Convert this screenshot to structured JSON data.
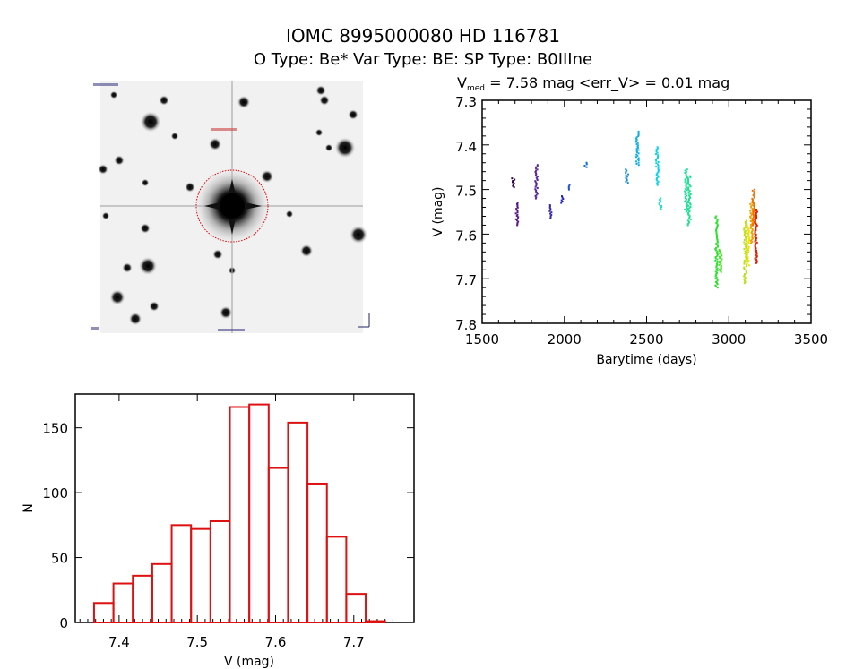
{
  "header": {
    "title": "IOMC 8995000080    HD 116781",
    "subtitle": "O Type: Be*   Var Type: BE:   SP Type: B0IIIne"
  },
  "colors": {
    "histogram": "#dd1111",
    "axes": "#000000",
    "circle": "#dd0000"
  },
  "chart_data": [
    {
      "type": "scatter",
      "title_prefix": "V",
      "title_sub": "med",
      "title_rest": " = 7.58 mag <err_V> = 0.01 mag",
      "xlabel": "Barytime (days)",
      "ylabel": "V (mag)",
      "xlim": [
        1500,
        3500
      ],
      "ylim": [
        7.3,
        7.8
      ],
      "y_inverted": true,
      "xticks": [
        "1500",
        "2000",
        "2500",
        "3000",
        "3500"
      ],
      "yticks": [
        "7.3",
        "7.4",
        "7.5",
        "7.6",
        "7.7",
        "7.8"
      ],
      "clusters": [
        {
          "t": 1690,
          "v": [
            7.475,
            7.495
          ],
          "color": "#2a0048"
        },
        {
          "t": 1712,
          "v": [
            7.53,
            7.58
          ],
          "color": "#5a1a8a"
        },
        {
          "t": 1830,
          "v": [
            7.445,
            7.52
          ],
          "color": "#5a2a9a"
        },
        {
          "t": 1915,
          "v": [
            7.535,
            7.565
          ],
          "color": "#3a2aa8"
        },
        {
          "t": 1985,
          "v": [
            7.515,
            7.53
          ],
          "color": "#2020c8"
        },
        {
          "t": 2030,
          "v": [
            7.49,
            7.5
          ],
          "color": "#2050d0"
        },
        {
          "t": 2130,
          "v": [
            7.44,
            7.45
          ],
          "color": "#1070d0"
        },
        {
          "t": 2380,
          "v": [
            7.455,
            7.485
          ],
          "color": "#1890d8"
        },
        {
          "t": 2445,
          "v": [
            7.37,
            7.445
          ],
          "color": "#10b0e0"
        },
        {
          "t": 2565,
          "v": [
            7.405,
            7.49
          ],
          "color": "#10d0e8"
        },
        {
          "t": 2582,
          "v": [
            7.52,
            7.545
          ],
          "color": "#20e0d0"
        },
        {
          "t": 2740,
          "v": [
            7.455,
            7.55
          ],
          "color": "#20e0a0"
        },
        {
          "t": 2760,
          "v": [
            7.47,
            7.58
          ],
          "color": "#20e090"
        },
        {
          "t": 2925,
          "v": [
            7.56,
            7.72
          ],
          "color": "#30e030"
        },
        {
          "t": 2950,
          "v": [
            7.635,
            7.685
          ],
          "color": "#50e030"
        },
        {
          "t": 3100,
          "v": [
            7.57,
            7.71
          ],
          "color": "#b8e020"
        },
        {
          "t": 3118,
          "v": [
            7.58,
            7.67
          ],
          "color": "#f0e000"
        },
        {
          "t": 3138,
          "v": [
            7.53,
            7.62
          ],
          "color": "#f0a000"
        },
        {
          "t": 3150,
          "v": [
            7.5,
            7.58
          ],
          "color": "#f07000"
        },
        {
          "t": 3166,
          "v": [
            7.545,
            7.665
          ],
          "color": "#e02000"
        }
      ]
    },
    {
      "type": "bar",
      "xlabel": "V (mag)",
      "ylabel": "N",
      "xlim": [
        7.344,
        7.777
      ],
      "ylim": [
        0,
        176
      ],
      "xticks": [
        "7.4",
        "7.5",
        "7.6",
        "7.7"
      ],
      "yticks": [
        "0",
        "50",
        "100",
        "150"
      ],
      "bin_start": 7.368,
      "bin_width": 0.0248,
      "values": [
        15,
        30,
        36,
        45,
        75,
        72,
        78,
        166,
        168,
        119,
        154,
        107,
        66,
        22,
        1
      ]
    }
  ]
}
